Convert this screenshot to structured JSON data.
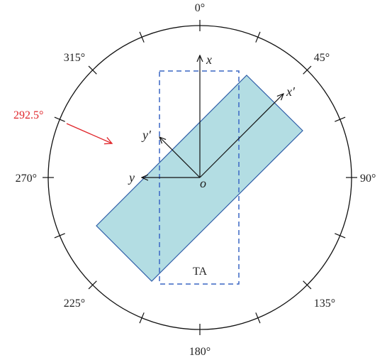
{
  "angle_labels": {
    "deg0": "0°",
    "deg45": "45°",
    "deg90": "90°",
    "deg135": "135°",
    "deg180": "180°",
    "deg225": "225°",
    "deg270": "270°",
    "deg315": "315°"
  },
  "highlight": {
    "angle_label": "292.5°",
    "color": "#e0262b"
  },
  "axes": {
    "x": "x",
    "y": "y",
    "x_prime": "x′",
    "y_prime": "y′",
    "origin": "o"
  },
  "region_label": "TA",
  "colors": {
    "rotated_rect_fill": "#b3dde3",
    "rotated_rect_stroke": "#2e5da8",
    "dashed_rect_stroke": "#3a66c4",
    "circle_stroke": "#111111"
  }
}
